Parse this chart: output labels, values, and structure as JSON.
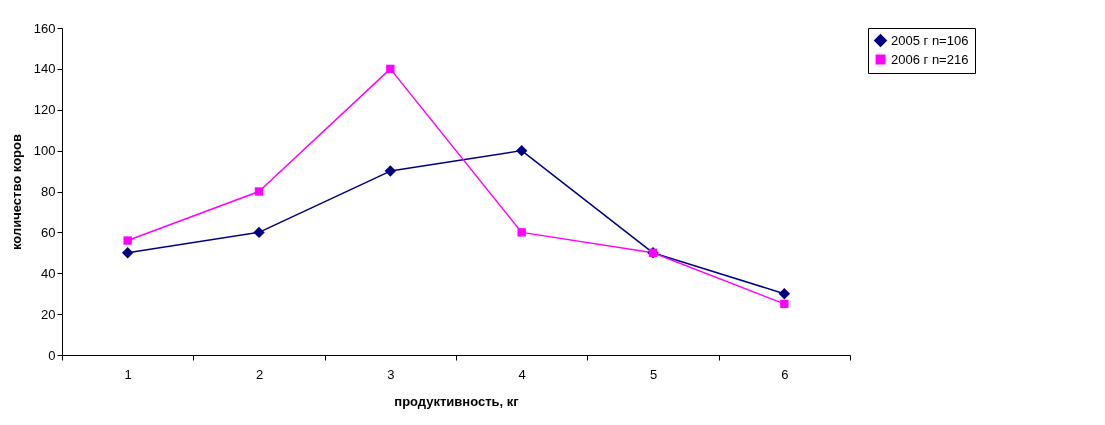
{
  "chart_data": {
    "type": "line",
    "xlabel": "продуктивность, кг",
    "ylabel": "количество коров",
    "categories": [
      "1",
      "2",
      "3",
      "4",
      "5",
      "6"
    ],
    "series": [
      {
        "name": "2005 г n=106",
        "color": "#000080",
        "marker": "diamond",
        "values": [
          50,
          60,
          90,
          100,
          50,
          30
        ]
      },
      {
        "name": "2006 г n=216",
        "color": "#ff00ff",
        "marker": "square",
        "values": [
          56,
          80,
          140,
          60,
          50,
          25
        ]
      }
    ],
    "ylim": [
      0,
      160
    ],
    "yticks": [
      0,
      20,
      40,
      60,
      80,
      100,
      120,
      140,
      160
    ],
    "grid": false,
    "legend": "right"
  }
}
